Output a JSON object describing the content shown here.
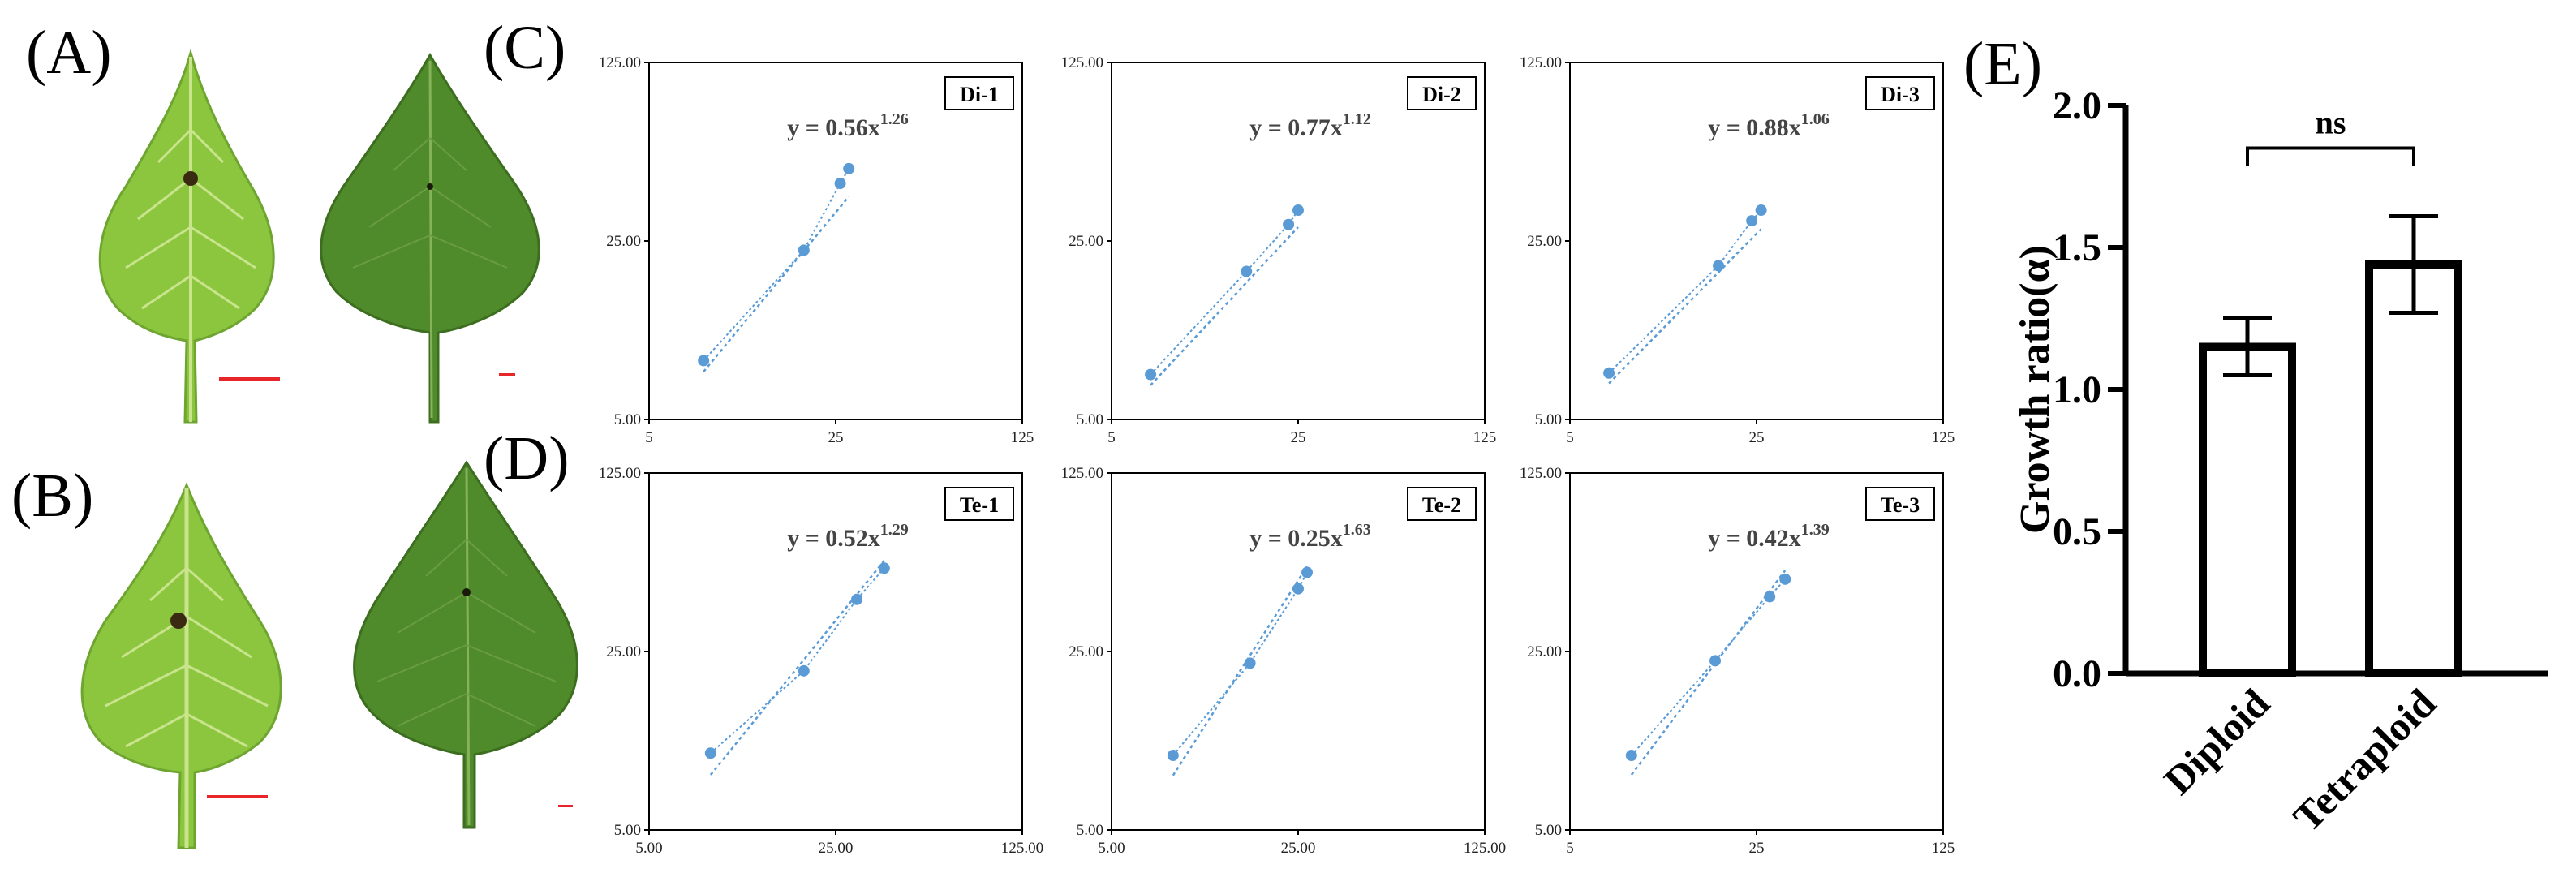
{
  "panel_labels": {
    "A": "(A)",
    "B": "(B)",
    "C": "(C)",
    "D": "(D)",
    "E": "(E)"
  },
  "colors": {
    "series": "#5b9bd5",
    "scale_bar": "#e8262a",
    "leaf_light": "#8cc63f",
    "leaf_dark": "#4f8a2b",
    "bar_stroke": "#000000"
  },
  "chart_data": [
    {
      "type": "scatter",
      "panel": "C",
      "tag": "Di-1",
      "equation": "y = 0.56x",
      "exponent": "1.26",
      "scale": "log",
      "xlim": [
        5,
        125
      ],
      "ylim": [
        5,
        125
      ],
      "xticks": [
        "5",
        "25",
        "125"
      ],
      "yticks": [
        "5.00",
        "25.00",
        "125.00"
      ],
      "x": [
        8,
        19,
        26,
        28
      ],
      "y": [
        8.5,
        23,
        42,
        48
      ],
      "fit": {
        "a": 0.56,
        "b": 1.26,
        "x_range": [
          8,
          28
        ]
      }
    },
    {
      "type": "scatter",
      "panel": "C",
      "tag": "Di-2",
      "equation": "y = 0.77x",
      "exponent": "1.12",
      "scale": "log",
      "xlim": [
        5,
        125
      ],
      "ylim": [
        5,
        125
      ],
      "xticks": [
        "5",
        "25",
        "125"
      ],
      "yticks": [
        "5.00",
        "25.00",
        "125.00"
      ],
      "x": [
        7,
        16,
        23,
        25
      ],
      "y": [
        7.5,
        19,
        29,
        33
      ],
      "fit": {
        "a": 0.77,
        "b": 1.12,
        "x_range": [
          7,
          25
        ]
      }
    },
    {
      "type": "scatter",
      "panel": "C",
      "tag": "Di-3",
      "equation": "y = 0.88x",
      "exponent": "1.06",
      "scale": "log",
      "xlim": [
        5,
        125
      ],
      "ylim": [
        5,
        125
      ],
      "xticks": [
        "5",
        "25",
        "125"
      ],
      "yticks": [
        "5.00",
        "25.00",
        "125.00"
      ],
      "x": [
        7,
        18,
        24,
        26
      ],
      "y": [
        7.6,
        20,
        30,
        33
      ],
      "fit": {
        "a": 0.88,
        "b": 1.06,
        "x_range": [
          7,
          26
        ]
      }
    },
    {
      "type": "scatter",
      "panel": "D",
      "tag": "Te-1",
      "equation": "y = 0.52x",
      "exponent": "1.29",
      "scale": "log",
      "xlim": [
        5,
        125
      ],
      "ylim": [
        5,
        125
      ],
      "xticks": [
        "5.00",
        "25.00",
        "125.00"
      ],
      "yticks": [
        "5.00",
        "25.00",
        "125.00"
      ],
      "x": [
        8.5,
        19,
        30,
        38
      ],
      "y": [
        10,
        21,
        40,
        53
      ],
      "fit": {
        "a": 0.52,
        "b": 1.29,
        "x_range": [
          8.5,
          38
        ]
      }
    },
    {
      "type": "scatter",
      "panel": "D",
      "tag": "Te-2",
      "equation": "y = 0.25x",
      "exponent": "1.63",
      "scale": "log",
      "xlim": [
        5,
        125
      ],
      "ylim": [
        5,
        125
      ],
      "xticks": [
        "5.00",
        "25.00",
        "125.00"
      ],
      "yticks": [
        "5.00",
        "25.00",
        "125.00"
      ],
      "x": [
        8.5,
        16.5,
        25,
        27
      ],
      "y": [
        9.8,
        22.5,
        44,
        51
      ],
      "fit": {
        "a": 0.25,
        "b": 1.63,
        "x_range": [
          8.5,
          27
        ]
      }
    },
    {
      "type": "scatter",
      "panel": "D",
      "tag": "Te-3",
      "equation": "y = 0.42x",
      "exponent": "1.39",
      "scale": "log",
      "xlim": [
        5,
        125
      ],
      "ylim": [
        5,
        125
      ],
      "xticks": [
        "5",
        "25",
        "125"
      ],
      "yticks": [
        "5.00",
        "25.00",
        "125.00"
      ],
      "x": [
        8.5,
        17.5,
        28,
        32
      ],
      "y": [
        9.8,
        23,
        41,
        48
      ],
      "fit": {
        "a": 0.42,
        "b": 1.39,
        "x_range": [
          8.5,
          32
        ]
      }
    },
    {
      "type": "bar",
      "panel": "E",
      "categories": [
        "Diploid",
        "Tetraploid"
      ],
      "values": [
        1.15,
        1.44
      ],
      "errors": [
        0.1,
        0.17
      ],
      "ylabel": "Growth ratio(α)",
      "ylim": [
        0,
        2.0
      ],
      "yticks": [
        "0.0",
        "0.5",
        "1.0",
        "1.5",
        "2.0"
      ],
      "significance": "ns"
    }
  ]
}
